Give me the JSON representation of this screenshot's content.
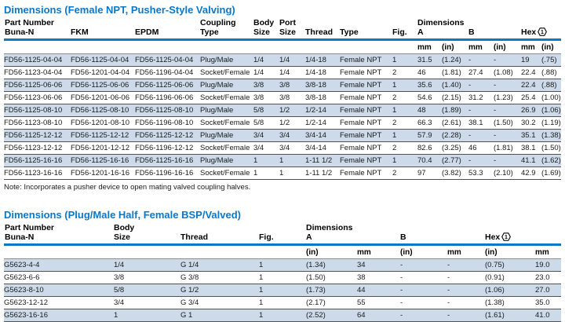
{
  "colors": {
    "accent_blue": "#0a78c8",
    "rule_blue": "#0a7ac6",
    "stripe_blue": "#ccdaea"
  },
  "hex_footnote_marker": "1",
  "table1": {
    "title": "Dimensions (Female NPT, Pusher-Style Valving)",
    "header": {
      "part_number": "Part Number",
      "buna": "Buna-N",
      "fkm": "FKM",
      "epdm": "EPDM",
      "coupling": "Coupling",
      "coupling_type": "Type",
      "body": "Body",
      "body_size": "Size",
      "port": "Port",
      "port_size": "Size",
      "thread": "Thread",
      "type": "Type",
      "fig": "Fig.",
      "dimensions": "Dimensions",
      "a": "A",
      "b": "B",
      "hex": "Hex"
    },
    "units": [
      "",
      "",
      "",
      "",
      "",
      "",
      "",
      "",
      "",
      "mm",
      "(in)",
      "mm",
      "(in)",
      "mm",
      "(in)"
    ],
    "rows": [
      [
        "FD56-1125-04-04",
        "FD56-1125-04-04",
        "FD56-1125-04-04",
        "Plug/Male",
        "1/4",
        "1/4",
        "1/4-18",
        "Female NPT",
        "1",
        "31.5",
        "(1.24)",
        "-",
        "-",
        "19",
        "(.75)"
      ],
      [
        "FD56-1123-04-04",
        "FD56-1201-04-04",
        "FD56-1196-04-04",
        "Socket/Female",
        "1/4",
        "1/4",
        "1/4-18",
        "Female NPT",
        "2",
        "46",
        "(1.81)",
        "27.4",
        "(1.08)",
        "22.4",
        "(.88)"
      ],
      [
        "FD56-1125-06-06",
        "FD56-1125-06-06",
        "FD56-1125-06-06",
        "Plug/Male",
        "3/8",
        "3/8",
        "3/8-18",
        "Female NPT",
        "1",
        "35.6",
        "(1.40)",
        "-",
        "-",
        "22.4",
        "(.88)"
      ],
      [
        "FD56-1123-06-06",
        "FD56-1201-06-06",
        "FD56-1196-06-06",
        "Socket/Female",
        "3/8",
        "3/8",
        "3/8-18",
        "Female NPT",
        "2",
        "54.6",
        "(2.15)",
        "31.2",
        "(1.23)",
        "25.4",
        "(1.00)"
      ],
      [
        "FD56-1125-08-10",
        "FD56-1125-08-10",
        "FD56-1125-08-10",
        "Plug/Male",
        "5/8",
        "1/2",
        "1/2-14",
        "Female NPT",
        "1",
        "48",
        "(1.89)",
        "-",
        "-",
        "26.9",
        "(1.06)"
      ],
      [
        "FD56-1123-08-10",
        "FD56-1201-08-10",
        "FD56-1196-08-10",
        "Socket/Female",
        "5/8",
        "1/2",
        "1/2-14",
        "Female NPT",
        "2",
        "66.3",
        "(2.61)",
        "38.1",
        "(1.50)",
        "30.2",
        "(1.19)"
      ],
      [
        "FD56-1125-12-12",
        "FD56-1125-12-12",
        "FD56-1125-12-12",
        "Plug/Male",
        "3/4",
        "3/4",
        "3/4-14",
        "Female NPT",
        "1",
        "57.9",
        "(2.28)",
        "-",
        "-",
        "35.1",
        "(1.38)"
      ],
      [
        "FD56-1123-12-12",
        "FD56-1201-12-12",
        "FD56-1196-12-12",
        "Socket/Female",
        "3/4",
        "3/4",
        "3/4-14",
        "Female NPT",
        "2",
        "82.6",
        "(3.25)",
        "46",
        "(1.81)",
        "38.1",
        "(1.50)"
      ],
      [
        "FD56-1125-16-16",
        "FD56-1125-16-16",
        "FD56-1125-16-16",
        "Plug/Male",
        "1",
        "1",
        "1-11 1/2",
        "Female NPT",
        "1",
        "70.4",
        "(2.77)",
        "-",
        "-",
        "41.1",
        "(1.62)"
      ],
      [
        "FD56-1123-16-16",
        "FD56-1201-16-16",
        "FD56-1196-16-16",
        "Socket/Female",
        "1",
        "1",
        "1-11 1/2",
        "Female NPT",
        "2",
        "97",
        "(3.82)",
        "53.3",
        "(2.10)",
        "42.9",
        "(1.69)"
      ]
    ],
    "note": "Note: Incorporates a pusher device to open mating valved coupling halves."
  },
  "table2": {
    "title": "Dimensions (Plug/Male Half, Female BSP/Valved)",
    "header": {
      "part_number": "Part Number",
      "buna": "Buna-N",
      "body": "Body",
      "body_size": "Size",
      "thread": "Thread",
      "fig": "Fig.",
      "dimensions": "Dimensions",
      "a": "A",
      "b": "B",
      "hex": "Hex"
    },
    "units": [
      "",
      "",
      "",
      "",
      "(in)",
      "mm",
      "(in)",
      "mm",
      "(in)",
      "mm"
    ],
    "rows": [
      [
        "G5623-4-4",
        "1/4",
        "G 1/4",
        "1",
        "(1.34)",
        "34",
        "-",
        "-",
        "(0.75)",
        "19.0"
      ],
      [
        "G5623-6-6",
        "3/8",
        "G 3/8",
        "1",
        "(1.50)",
        "38",
        "-",
        "-",
        "(0.91)",
        "23.0"
      ],
      [
        "G5623-8-10",
        "5/8",
        "G 1/2",
        "1",
        "(1.73)",
        "44",
        "-",
        "-",
        "(1.06)",
        "27.0"
      ],
      [
        "G5623-12-12",
        "3/4",
        "G 3/4",
        "1",
        "(2.17)",
        "55",
        "-",
        "-",
        "(1.38)",
        "35.0"
      ],
      [
        "G5623-16-16",
        "1",
        "G 1",
        "1",
        "(2.52)",
        "64",
        "-",
        "-",
        "(1.61)",
        "41.0"
      ]
    ]
  }
}
